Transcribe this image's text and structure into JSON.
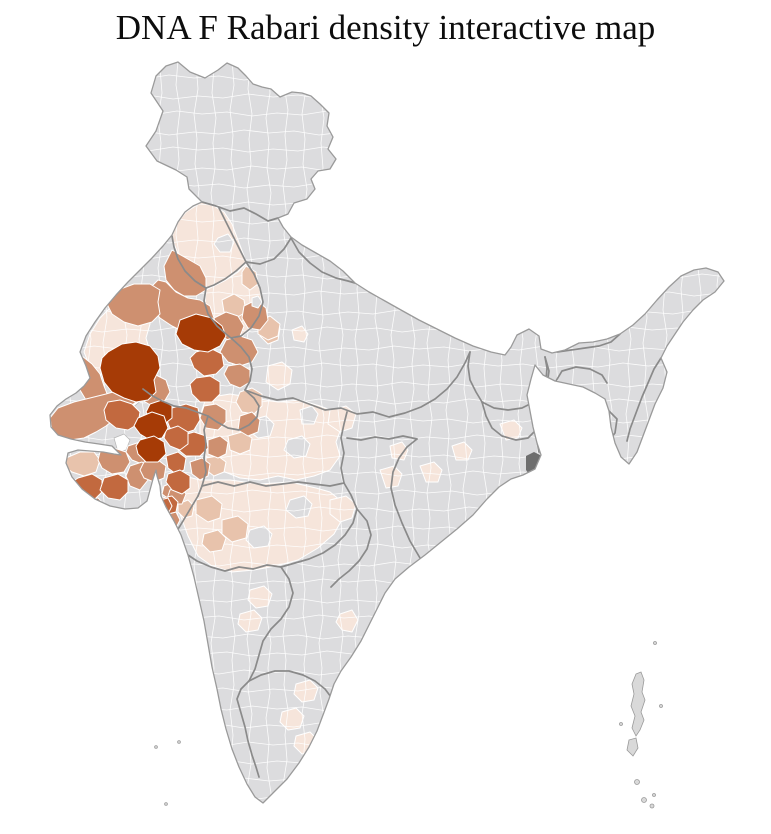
{
  "title": "DNA F Rabari density interactive map",
  "map": {
    "background": "#ffffff",
    "colors": {
      "no_data": "#dcdcde",
      "district_border": "#ffffff",
      "state_border": "#8a8a8a",
      "outline": "#9a9a9a",
      "water_dark": "#6e6e6e",
      "island": "#d9d9d9",
      "rann_white": "#ffffff",
      "scale": [
        "#f6e5db",
        "#e8c3ac",
        "#ce9070",
        "#c2693f",
        "#a63b06"
      ]
    }
  }
}
